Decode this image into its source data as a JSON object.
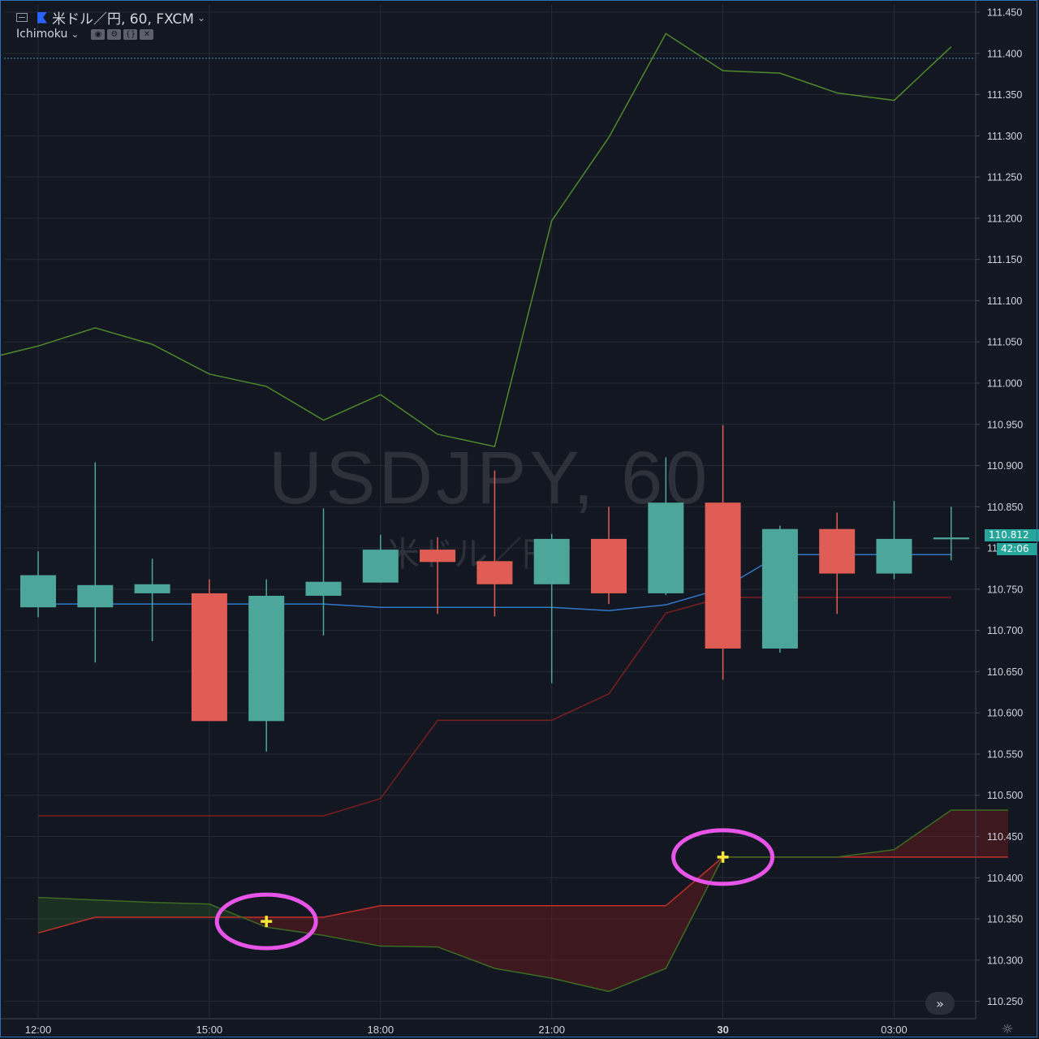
{
  "header": {
    "symbol_label": "米ドル／円, 60, FXCM",
    "indicator_label": "Ichimoku",
    "indicator_buttons": [
      "eye-icon",
      "gear-icon",
      "source-icon",
      "close-icon"
    ]
  },
  "watermark": {
    "title": "USDJPY, 60",
    "subtitle": "米ドル／円"
  },
  "price_tags": {
    "last_price": "110.812",
    "countdown": "42:06"
  },
  "chart_data": {
    "type": "candlestick",
    "ylim": [
      110.225,
      111.462
    ],
    "yticks": [
      "111.450",
      "111.400",
      "111.350",
      "111.300",
      "111.250",
      "111.200",
      "111.150",
      "111.100",
      "111.050",
      "111.000",
      "110.950",
      "110.900",
      "110.850",
      "110.800",
      "110.750",
      "110.700",
      "110.650",
      "110.600",
      "110.550",
      "110.500",
      "110.450",
      "110.400",
      "110.350",
      "110.300",
      "110.250"
    ],
    "xtick_labels": [
      {
        "label": "12:00",
        "index": 0
      },
      {
        "label": "15:00",
        "index": 3
      },
      {
        "label": "18:00",
        "index": 6
      },
      {
        "label": "21:00",
        "index": 9
      },
      {
        "label": "30",
        "index": 12
      },
      {
        "label": "03:00",
        "index": 15
      }
    ],
    "candles": [
      {
        "o": 110.728,
        "h": 110.796,
        "l": 110.716,
        "c": 110.767
      },
      {
        "o": 110.728,
        "h": 110.904,
        "l": 110.661,
        "c": 110.755
      },
      {
        "o": 110.745,
        "h": 110.787,
        "l": 110.687,
        "c": 110.756
      },
      {
        "o": 110.745,
        "h": 110.762,
        "l": 110.59,
        "c": 110.59
      },
      {
        "o": 110.59,
        "h": 110.762,
        "l": 110.553,
        "c": 110.742
      },
      {
        "o": 110.742,
        "h": 110.848,
        "l": 110.694,
        "c": 110.759
      },
      {
        "o": 110.758,
        "h": 110.816,
        "l": 110.758,
        "c": 110.798
      },
      {
        "o": 110.798,
        "h": 110.813,
        "l": 110.72,
        "c": 110.783
      },
      {
        "o": 110.784,
        "h": 110.894,
        "l": 110.717,
        "c": 110.756
      },
      {
        "o": 110.756,
        "h": 110.817,
        "l": 110.636,
        "c": 110.811
      },
      {
        "o": 110.811,
        "h": 110.85,
        "l": 110.732,
        "c": 110.745
      },
      {
        "o": 110.745,
        "h": 110.91,
        "l": 110.743,
        "c": 110.855
      },
      {
        "o": 110.855,
        "h": 110.949,
        "l": 110.64,
        "c": 110.678
      },
      {
        "o": 110.678,
        "h": 110.827,
        "l": 110.673,
        "c": 110.823
      },
      {
        "o": 110.823,
        "h": 110.843,
        "l": 110.72,
        "c": 110.769
      },
      {
        "o": 110.769,
        "h": 110.857,
        "l": 110.762,
        "c": 110.811
      },
      {
        "o": 110.812,
        "h": 110.85,
        "l": 110.785,
        "c": 110.812
      }
    ],
    "series": [
      {
        "role": "conversion_line",
        "start_index": 0,
        "values": [
          110.732,
          110.732,
          110.732,
          110.732,
          110.732,
          110.732,
          110.728,
          110.728,
          110.728,
          110.728,
          110.724,
          110.731,
          110.751,
          110.792,
          110.792,
          110.792,
          110.792
        ]
      },
      {
        "role": "lagging_span",
        "start_index": -1,
        "values": [
          111.028,
          111.045,
          111.067,
          111.047,
          111.011,
          110.996,
          110.955,
          110.986,
          110.938,
          110.923,
          111.197,
          111.298,
          111.424,
          111.379,
          111.376,
          111.352,
          111.343,
          111.408
        ]
      },
      {
        "role": "base_line",
        "start_index": 0,
        "values": [
          110.475,
          110.475,
          110.475,
          110.475,
          110.475,
          110.475,
          110.496,
          110.591,
          110.591,
          110.591,
          110.623,
          110.721,
          110.74,
          110.74,
          110.74,
          110.74,
          110.74
        ]
      },
      {
        "role": "leading_span_a",
        "start_index": 0,
        "values": [
          110.333,
          110.352,
          110.352,
          110.352,
          110.352,
          110.352,
          110.366,
          110.366,
          110.366,
          110.366,
          110.366,
          110.366,
          110.425,
          110.425,
          110.425,
          110.425,
          110.425,
          110.425
        ]
      },
      {
        "role": "leading_span_b",
        "start_index": 0,
        "values": [
          110.376,
          110.373,
          110.37,
          110.368,
          110.34,
          110.33,
          110.317,
          110.316,
          110.29,
          110.278,
          110.262,
          110.29,
          110.425,
          110.425,
          110.425,
          110.434,
          110.482,
          110.482
        ]
      }
    ],
    "dashed_level": 111.394,
    "markers": [
      {
        "x_index": 4.0,
        "y": 110.347
      },
      {
        "x_index": 12.0,
        "y": 110.425
      }
    ],
    "colors": {
      "up": "#4ca69a",
      "down": "#e05d55",
      "conversion_line": "#3178c6",
      "base_line": "#7a1f1f",
      "lagging_span": "#4e8a2a",
      "leading_span_a": "#c0312b",
      "leading_span_b": "#3c6b23",
      "marker_circle": "#e754e8",
      "marker_cross": "#f5e63c"
    }
  }
}
